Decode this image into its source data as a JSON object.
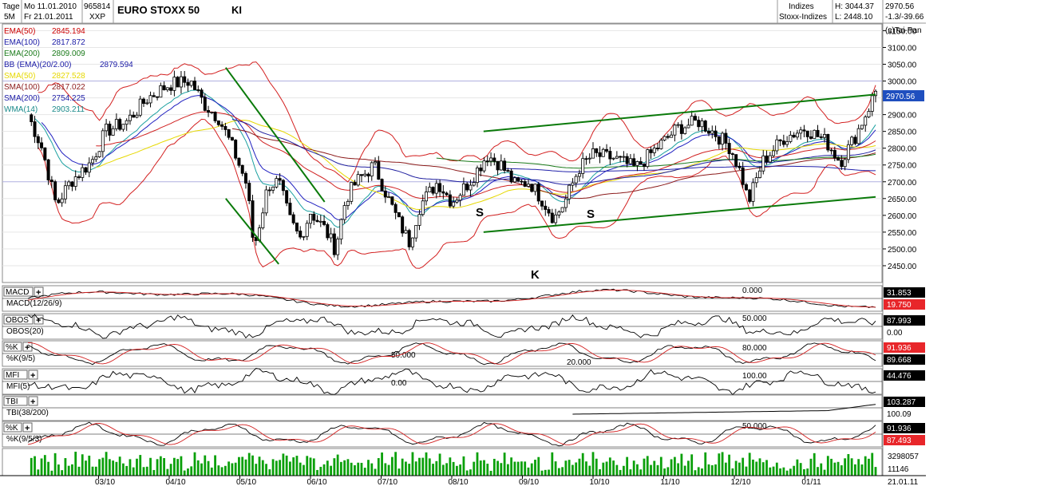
{
  "header": {
    "tage_label": "Tage",
    "period_label": "5M",
    "date_from": "Mo 11.01.2010",
    "date_to": "Fr 21.01.2011",
    "code": "965814",
    "code_sub": "XXP",
    "title": "EURO STOXX 50",
    "ki_label": "KI",
    "category": "Indizes",
    "subcategory": "Stoxx-Indizes",
    "high": "H: 3044.37",
    "low": "L: 2448.10",
    "last": "2970.56",
    "change": "-1.3/-39.66",
    "copyright": "(c)Tai-Pan"
  },
  "indicators_main": [
    {
      "label": "EMA(50)",
      "value": "2845.194",
      "color": "#cc0000"
    },
    {
      "label": "EMA(100)",
      "value": "2817.872",
      "color": "#1a1aa6"
    },
    {
      "label": "EMA(200)",
      "value": "2809.009",
      "color": "#1a7a1a"
    },
    {
      "label": "BB (EMA)(20/2.00)",
      "value": "2879.594",
      "color": "#1a1aa6"
    },
    {
      "label": "SMA(50)",
      "value": "2827.528",
      "color": "#e6d800"
    },
    {
      "label": "SMA(100)",
      "value": "2817.022",
      "color": "#8b1a1a"
    },
    {
      "label": "SMA(200)",
      "value": "2754.225",
      "color": "#1a1aa6"
    },
    {
      "label": "WMA(14)",
      "value": "2903.211",
      "color": "#1a8a8a"
    }
  ],
  "annotations": {
    "s1": "S",
    "s2": "S",
    "k": "K"
  },
  "panels": [
    {
      "button": "MACD",
      "label": "MACD(12/26/9)",
      "ref": "0.000",
      "values": [
        "31.853",
        "19.750"
      ],
      "value_colors": [
        "#000000",
        "#e8262a"
      ]
    },
    {
      "button": "OBOS",
      "label": "OBOS(20)",
      "ref": "50.000",
      "values": [
        "87.993",
        "0.00"
      ],
      "value_colors": [
        "#000000",
        "#ffffff"
      ]
    },
    {
      "button": "%K",
      "label": "%K(9/5)",
      "refs": [
        "80.000",
        "50.000",
        "20.000"
      ],
      "values": [
        "91.936",
        "89.668"
      ],
      "value_colors": [
        "#e8262a",
        "#000000"
      ]
    },
    {
      "button": "MFI",
      "label": "MFI(5)",
      "refs": [
        "100.00",
        "0.00"
      ],
      "values": [
        "44.476"
      ],
      "value_colors": [
        "#000000"
      ]
    },
    {
      "button": "TBI",
      "label": "TBI(38/200)",
      "values": [
        "103.287",
        "100.09"
      ],
      "value_colors": [
        "#000000",
        "#ffffff"
      ]
    },
    {
      "button": "%K",
      "label": "%K(9/5/3)",
      "ref": "50.000",
      "values": [
        "91.936",
        "87.493"
      ],
      "value_colors": [
        "#000000",
        "#e8262a"
      ]
    }
  ],
  "volume": {
    "labels": [
      "3298057",
      "11146"
    ]
  },
  "chart_data": {
    "type": "candlestick",
    "title": "EURO STOXX 50",
    "x_ticks": [
      "03/10",
      "04/10",
      "05/10",
      "06/10",
      "07/10",
      "08/10",
      "09/10",
      "10/10",
      "11/10",
      "12/10",
      "01/11"
    ],
    "x_end_label": "21.01.11",
    "y_ticks": [
      3150,
      3100,
      3050,
      3000,
      2950,
      2900,
      2850,
      2800,
      2750,
      2700,
      2650,
      2600,
      2550,
      2500,
      2450
    ],
    "ylim": [
      2400,
      3170
    ],
    "close_path": [
      {
        "m": 0.0,
        "v": 2900
      },
      {
        "m": 0.2,
        "v": 2800
      },
      {
        "m": 0.4,
        "v": 2630
      },
      {
        "m": 0.6,
        "v": 2700
      },
      {
        "m": 0.9,
        "v": 2760
      },
      {
        "m": 1.1,
        "v": 2850
      },
      {
        "m": 1.4,
        "v": 2880
      },
      {
        "m": 1.7,
        "v": 2950
      },
      {
        "m": 2.0,
        "v": 2990
      },
      {
        "m": 2.3,
        "v": 3000
      },
      {
        "m": 2.5,
        "v": 2930
      },
      {
        "m": 2.7,
        "v": 2890
      },
      {
        "m": 2.9,
        "v": 2800
      },
      {
        "m": 3.1,
        "v": 2690
      },
      {
        "m": 3.2,
        "v": 2500
      },
      {
        "m": 3.4,
        "v": 2690
      },
      {
        "m": 3.55,
        "v": 2700
      },
      {
        "m": 3.7,
        "v": 2590
      },
      {
        "m": 3.85,
        "v": 2530
      },
      {
        "m": 4.0,
        "v": 2610
      },
      {
        "m": 4.2,
        "v": 2560
      },
      {
        "m": 4.35,
        "v": 2500
      },
      {
        "m": 4.5,
        "v": 2650
      },
      {
        "m": 4.65,
        "v": 2700
      },
      {
        "m": 4.9,
        "v": 2750
      },
      {
        "m": 5.1,
        "v": 2650
      },
      {
        "m": 5.25,
        "v": 2580
      },
      {
        "m": 5.4,
        "v": 2520
      },
      {
        "m": 5.55,
        "v": 2630
      },
      {
        "m": 5.8,
        "v": 2700
      },
      {
        "m": 6.0,
        "v": 2640
      },
      {
        "m": 6.25,
        "v": 2700
      },
      {
        "m": 6.5,
        "v": 2780
      },
      {
        "m": 6.7,
        "v": 2750
      },
      {
        "m": 6.9,
        "v": 2690
      },
      {
        "m": 7.1,
        "v": 2700
      },
      {
        "m": 7.3,
        "v": 2640
      },
      {
        "m": 7.45,
        "v": 2590
      },
      {
        "m": 7.6,
        "v": 2640
      },
      {
        "m": 7.8,
        "v": 2740
      },
      {
        "m": 8.0,
        "v": 2780
      },
      {
        "m": 8.3,
        "v": 2770
      },
      {
        "m": 8.6,
        "v": 2740
      },
      {
        "m": 8.9,
        "v": 2800
      },
      {
        "m": 9.2,
        "v": 2860
      },
      {
        "m": 9.5,
        "v": 2880
      },
      {
        "m": 9.75,
        "v": 2840
      },
      {
        "m": 9.95,
        "v": 2800
      },
      {
        "m": 10.1,
        "v": 2720
      },
      {
        "m": 10.2,
        "v": 2640
      },
      {
        "m": 10.4,
        "v": 2760
      },
      {
        "m": 10.7,
        "v": 2830
      },
      {
        "m": 11.0,
        "v": 2860
      },
      {
        "m": 11.3,
        "v": 2820
      },
      {
        "m": 11.5,
        "v": 2760
      },
      {
        "m": 11.7,
        "v": 2830
      },
      {
        "m": 11.9,
        "v": 2920
      },
      {
        "m": 12.0,
        "v": 2970
      }
    ],
    "x_ticks_month_index": [
      1.85,
      2.85,
      3.85,
      4.85,
      5.85,
      6.85,
      7.85,
      8.85,
      9.85,
      10.85,
      11.85
    ]
  }
}
